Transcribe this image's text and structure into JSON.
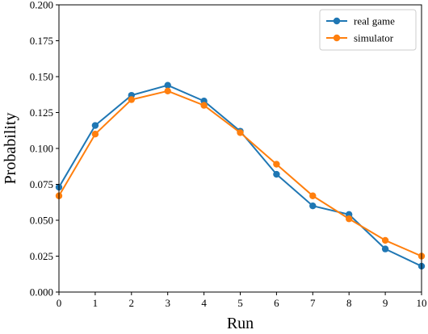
{
  "chart_data": {
    "type": "line",
    "x": [
      0,
      1,
      2,
      3,
      4,
      5,
      6,
      7,
      8,
      9,
      10
    ],
    "series": [
      {
        "name": "real game",
        "color": "#1f77b4",
        "values": [
          0.073,
          0.116,
          0.137,
          0.144,
          0.133,
          0.112,
          0.082,
          0.06,
          0.054,
          0.03,
          0.018
        ]
      },
      {
        "name": "simulator",
        "color": "#ff7f0e",
        "values": [
          0.067,
          0.11,
          0.134,
          0.14,
          0.13,
          0.111,
          0.089,
          0.067,
          0.051,
          0.036,
          0.025
        ]
      }
    ],
    "xlabel": "Run",
    "ylabel": "Probability",
    "xlim": [
      0,
      10
    ],
    "ylim": [
      0,
      0.2
    ],
    "xticks": [
      "0",
      "1",
      "2",
      "3",
      "4",
      "5",
      "6",
      "7",
      "8",
      "9",
      "10"
    ],
    "yticks": [
      "0.000",
      "0.025",
      "0.050",
      "0.075",
      "0.100",
      "0.125",
      "0.150",
      "0.175",
      "0.200"
    ],
    "grid": false,
    "legend_position": "top-right"
  }
}
